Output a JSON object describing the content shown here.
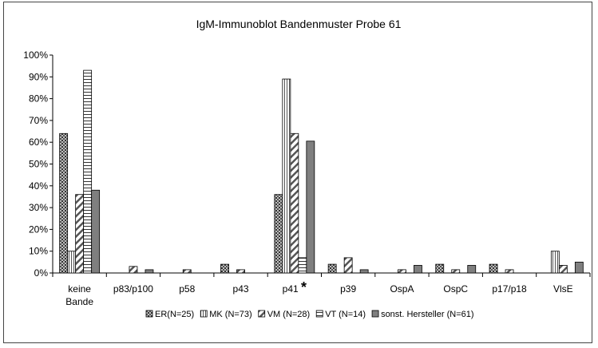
{
  "chart_data": {
    "type": "bar",
    "title": "IgM-Immunoblot Bandenmuster Probe 61",
    "categories": [
      [
        "keine",
        "Bande"
      ],
      [
        "p83/p100"
      ],
      [
        "p58"
      ],
      [
        "p43"
      ],
      [
        "p41 *"
      ],
      [
        "p39"
      ],
      [
        "OspA"
      ],
      [
        "OspC"
      ],
      [
        "p17/p18"
      ],
      [
        "VlsE"
      ]
    ],
    "ylim": [
      0,
      100
    ],
    "yticks": [
      0,
      10,
      20,
      30,
      40,
      50,
      60,
      70,
      80,
      90,
      100
    ],
    "ytick_labels": [
      "0%",
      "10%",
      "20%",
      "30%",
      "40%",
      "50%",
      "60%",
      "70%",
      "80%",
      "90%",
      "100%"
    ],
    "grid": false,
    "legend_position": "bottom",
    "series": [
      {
        "name": "ER(N=25)",
        "pattern": "dots",
        "values": [
          64,
          0,
          0,
          4,
          36,
          4,
          0,
          4,
          4,
          0
        ]
      },
      {
        "name": "MK (N=73)",
        "pattern": "vlines",
        "values": [
          10,
          0,
          0,
          0,
          89,
          0,
          0,
          0,
          0,
          10
        ]
      },
      {
        "name": "VM (N=28)",
        "pattern": "diagonal",
        "values": [
          36,
          3,
          1.5,
          1.5,
          64,
          7,
          1.5,
          1.5,
          1.5,
          3.5
        ]
      },
      {
        "name": "VT (N=14)",
        "pattern": "hlines",
        "values": [
          93,
          0,
          0,
          0,
          7,
          0,
          0,
          0,
          0,
          0
        ]
      },
      {
        "name": "sonst. Hersteller (N=61)",
        "pattern": "solid",
        "values": [
          38,
          1.5,
          0,
          0,
          60.5,
          1.5,
          3.5,
          3.5,
          0,
          5
        ]
      }
    ]
  }
}
